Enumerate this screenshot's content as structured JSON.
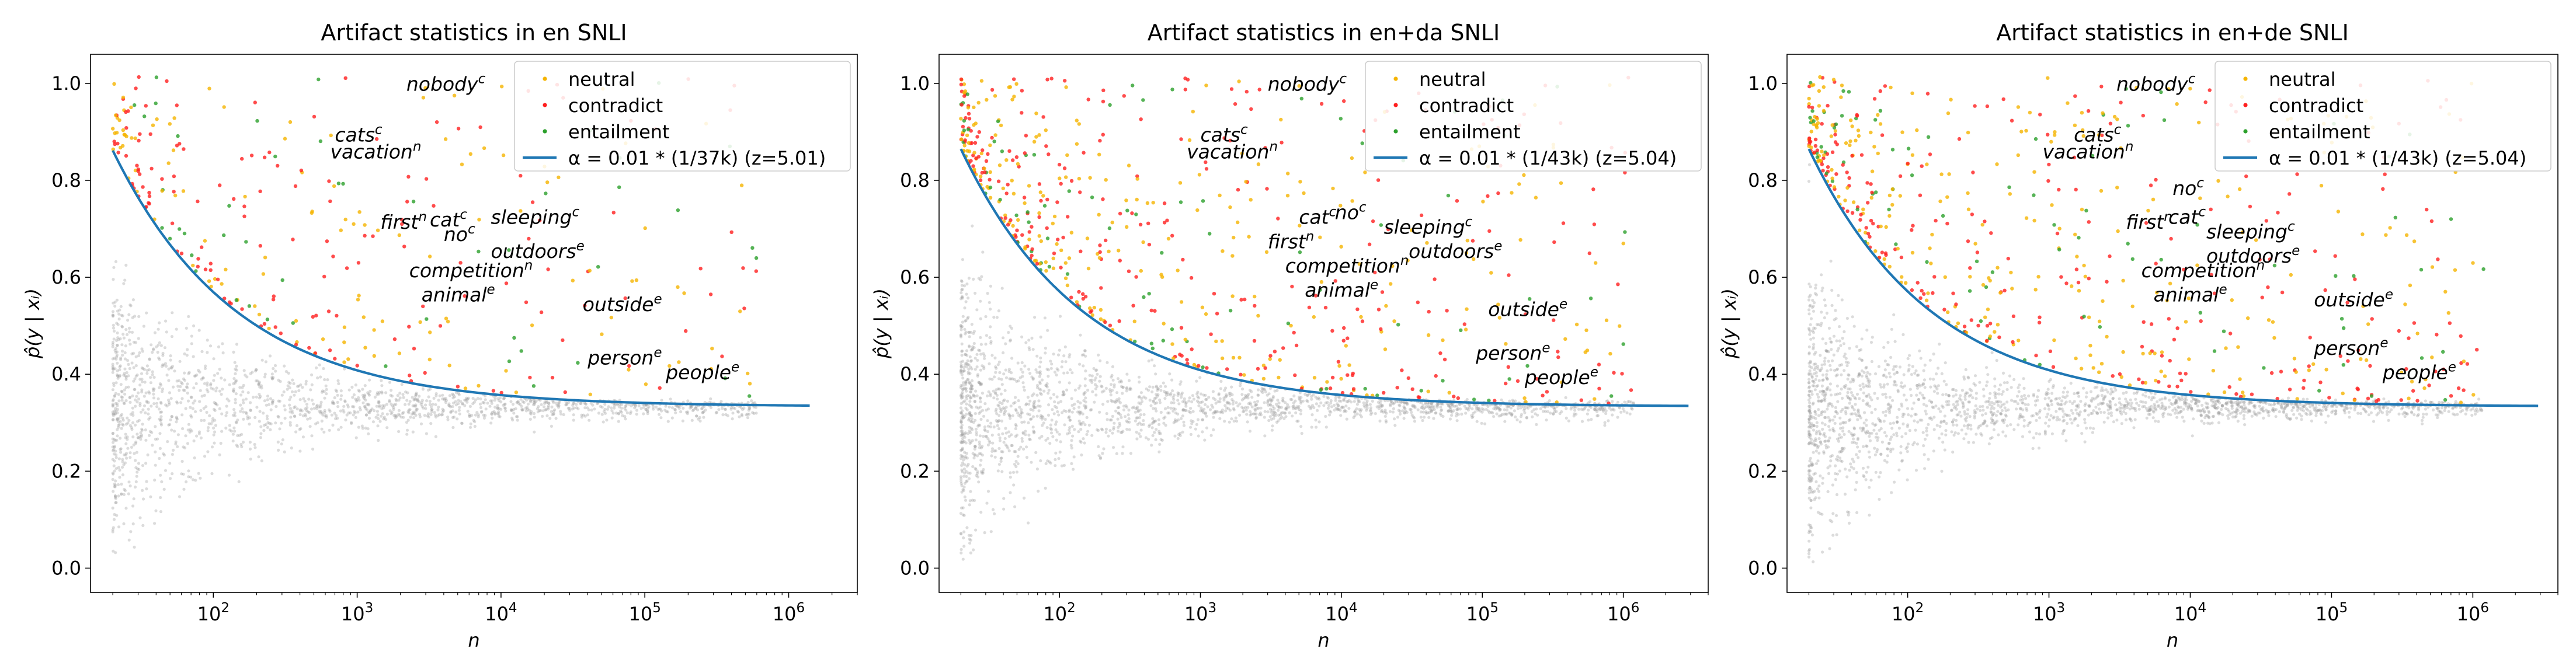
{
  "colors": {
    "neutral": "#f5b400",
    "contradict": "#ff1f1f",
    "entailment": "#2ca02c",
    "curve": "#1f77b4",
    "background_points": "#9a9a9a"
  },
  "chart_data": [
    {
      "type": "scatter",
      "title": "Artifact statistics in en SNLI",
      "xlabel": "n",
      "ylabel": "p̂(y | xᵢ)",
      "xscale": "log",
      "xlim": [
        14,
        3000000
      ],
      "ylim": [
        -0.05,
        1.06
      ],
      "xticks": [
        {
          "value": 100,
          "base": "10",
          "exp": "2"
        },
        {
          "value": 1000,
          "base": "10",
          "exp": "3"
        },
        {
          "value": 10000,
          "base": "10",
          "exp": "4"
        },
        {
          "value": 100000,
          "base": "10",
          "exp": "5"
        },
        {
          "value": 1000000,
          "base": "10",
          "exp": "6"
        }
      ],
      "yticks": [
        {
          "value": 0.0,
          "label": "0.0"
        },
        {
          "value": 0.2,
          "label": "0.2"
        },
        {
          "value": 0.4,
          "label": "0.4"
        },
        {
          "value": 0.6,
          "label": "0.6"
        },
        {
          "value": 0.8,
          "label": "0.8"
        },
        {
          "value": 1.0,
          "label": "1.0"
        }
      ],
      "legend": {
        "location": "top-right",
        "entries": [
          {
            "label": "neutral",
            "kind": "marker",
            "series": "neutral"
          },
          {
            "label": "contradict",
            "kind": "marker",
            "series": "contradict"
          },
          {
            "label": "entailment",
            "kind": "marker",
            "series": "entailment"
          },
          {
            "label": "α = 0.01 * (1/37k) (z=5.01)",
            "kind": "line",
            "series": "curve"
          }
        ]
      },
      "threshold_curve": {
        "name": "α = 0.01 * (1/37k)",
        "z": 5.01,
        "baseline": 0.3333,
        "x_range": [
          20,
          1400000
        ]
      },
      "background_cloud": {
        "center": 0.333,
        "x_range": [
          20,
          600000
        ],
        "count": 1700
      },
      "artifact_points": {
        "count": 330,
        "x_max": 600000
      },
      "annotations": [
        {
          "word": "nobody",
          "label": "c",
          "x": 2200,
          "y": 0.985
        },
        {
          "word": "cats",
          "label": "c",
          "x": 700,
          "y": 0.88
        },
        {
          "word": "vacation",
          "label": "n",
          "x": 650,
          "y": 0.845
        },
        {
          "word": "first",
          "label": "n",
          "x": 1450,
          "y": 0.7
        },
        {
          "word": "cat",
          "label": "c",
          "x": 3200,
          "y": 0.705
        },
        {
          "word": "no",
          "label": "c",
          "x": 4000,
          "y": 0.675
        },
        {
          "word": "sleeping",
          "label": "c",
          "x": 8500,
          "y": 0.71
        },
        {
          "word": "outdoors",
          "label": "e",
          "x": 8500,
          "y": 0.64
        },
        {
          "word": "competition",
          "label": "n",
          "x": 2300,
          "y": 0.6
        },
        {
          "word": "animal",
          "label": "e",
          "x": 2800,
          "y": 0.55
        },
        {
          "word": "outside",
          "label": "e",
          "x": 37000,
          "y": 0.53
        },
        {
          "word": "person",
          "label": "e",
          "x": 40000,
          "y": 0.42
        },
        {
          "word": "people",
          "label": "e",
          "x": 140000,
          "y": 0.39
        }
      ]
    },
    {
      "type": "scatter",
      "title": "Artifact statistics in en+da SNLI",
      "xlabel": "n",
      "ylabel": "p̂(y | xᵢ)",
      "xscale": "log",
      "xlim": [
        14,
        4000000
      ],
      "ylim": [
        -0.05,
        1.06
      ],
      "xticks": [
        {
          "value": 100,
          "base": "10",
          "exp": "2"
        },
        {
          "value": 1000,
          "base": "10",
          "exp": "3"
        },
        {
          "value": 10000,
          "base": "10",
          "exp": "4"
        },
        {
          "value": 100000,
          "base": "10",
          "exp": "5"
        },
        {
          "value": 1000000,
          "base": "10",
          "exp": "6"
        }
      ],
      "yticks": [
        {
          "value": 0.0,
          "label": "0.0"
        },
        {
          "value": 0.2,
          "label": "0.2"
        },
        {
          "value": 0.4,
          "label": "0.4"
        },
        {
          "value": 0.6,
          "label": "0.6"
        },
        {
          "value": 0.8,
          "label": "0.8"
        },
        {
          "value": 1.0,
          "label": "1.0"
        }
      ],
      "legend": {
        "location": "top-right",
        "entries": [
          {
            "label": "neutral",
            "kind": "marker",
            "series": "neutral"
          },
          {
            "label": "contradict",
            "kind": "marker",
            "series": "contradict"
          },
          {
            "label": "entailment",
            "kind": "marker",
            "series": "entailment"
          },
          {
            "label": "α = 0.01 * (1/43k) (z=5.04)",
            "kind": "line",
            "series": "curve"
          }
        ]
      },
      "threshold_curve": {
        "name": "α = 0.01 * (1/43k)",
        "z": 5.04,
        "baseline": 0.3333,
        "x_range": [
          20,
          2900000
        ]
      },
      "background_cloud": {
        "center": 0.333,
        "x_range": [
          20,
          1200000
        ],
        "count": 2000
      },
      "artifact_points": {
        "count": 620,
        "x_max": 1200000
      },
      "annotations": [
        {
          "word": "nobody",
          "label": "c",
          "x": 3000,
          "y": 0.985
        },
        {
          "word": "cats",
          "label": "c",
          "x": 1000,
          "y": 0.88
        },
        {
          "word": "vacation",
          "label": "n",
          "x": 800,
          "y": 0.845
        },
        {
          "word": "first",
          "label": "n",
          "x": 3000,
          "y": 0.66
        },
        {
          "word": "cat",
          "label": "c",
          "x": 5000,
          "y": 0.71
        },
        {
          "word": "no",
          "label": "c",
          "x": 9000,
          "y": 0.72
        },
        {
          "word": "sleeping",
          "label": "c",
          "x": 20000,
          "y": 0.69
        },
        {
          "word": "outdoors",
          "label": "e",
          "x": 30000,
          "y": 0.64
        },
        {
          "word": "competition",
          "label": "n",
          "x": 4000,
          "y": 0.61
        },
        {
          "word": "animal",
          "label": "e",
          "x": 5500,
          "y": 0.56
        },
        {
          "word": "outside",
          "label": "e",
          "x": 110000,
          "y": 0.52
        },
        {
          "word": "person",
          "label": "e",
          "x": 90000,
          "y": 0.43
        },
        {
          "word": "people",
          "label": "e",
          "x": 200000,
          "y": 0.38
        }
      ]
    },
    {
      "type": "scatter",
      "title": "Artifact statistics in en+de SNLI",
      "xlabel": "n",
      "ylabel": "p̂(y | xᵢ)",
      "xscale": "log",
      "xlim": [
        14,
        4000000
      ],
      "ylim": [
        -0.05,
        1.06
      ],
      "xticks": [
        {
          "value": 100,
          "base": "10",
          "exp": "2"
        },
        {
          "value": 1000,
          "base": "10",
          "exp": "3"
        },
        {
          "value": 10000,
          "base": "10",
          "exp": "4"
        },
        {
          "value": 100000,
          "base": "10",
          "exp": "5"
        },
        {
          "value": 1000000,
          "base": "10",
          "exp": "6"
        }
      ],
      "yticks": [
        {
          "value": 0.0,
          "label": "0.0"
        },
        {
          "value": 0.2,
          "label": "0.2"
        },
        {
          "value": 0.4,
          "label": "0.4"
        },
        {
          "value": 0.6,
          "label": "0.6"
        },
        {
          "value": 0.8,
          "label": "0.8"
        },
        {
          "value": 1.0,
          "label": "1.0"
        }
      ],
      "legend": {
        "location": "top-right",
        "entries": [
          {
            "label": "neutral",
            "kind": "marker",
            "series": "neutral"
          },
          {
            "label": "contradict",
            "kind": "marker",
            "series": "contradict"
          },
          {
            "label": "entailment",
            "kind": "marker",
            "series": "entailment"
          },
          {
            "label": "α = 0.01 * (1/43k) (z=5.04)",
            "kind": "line",
            "series": "curve"
          }
        ]
      },
      "threshold_curve": {
        "name": "α = 0.01 * (1/43k)",
        "z": 5.04,
        "baseline": 0.3333,
        "x_range": [
          20,
          2900000
        ]
      },
      "background_cloud": {
        "center": 0.333,
        "x_range": [
          20,
          1200000
        ],
        "count": 2000
      },
      "artifact_points": {
        "count": 620,
        "x_max": 1200000
      },
      "annotations": [
        {
          "word": "nobody",
          "label": "c",
          "x": 3000,
          "y": 0.985
        },
        {
          "word": "cats",
          "label": "c",
          "x": 1500,
          "y": 0.88
        },
        {
          "word": "vacation",
          "label": "n",
          "x": 900,
          "y": 0.845
        },
        {
          "word": "no",
          "label": "c",
          "x": 7500,
          "y": 0.77
        },
        {
          "word": "first",
          "label": "n",
          "x": 3500,
          "y": 0.7
        },
        {
          "word": "cat",
          "label": "c",
          "x": 7000,
          "y": 0.71
        },
        {
          "word": "sleeping",
          "label": "c",
          "x": 13000,
          "y": 0.68
        },
        {
          "word": "outdoors",
          "label": "e",
          "x": 13000,
          "y": 0.63
        },
        {
          "word": "competition",
          "label": "n",
          "x": 4500,
          "y": 0.6
        },
        {
          "word": "animal",
          "label": "e",
          "x": 5500,
          "y": 0.55
        },
        {
          "word": "outside",
          "label": "e",
          "x": 75000,
          "y": 0.54
        },
        {
          "word": "person",
          "label": "e",
          "x": 75000,
          "y": 0.44
        },
        {
          "word": "people",
          "label": "e",
          "x": 230000,
          "y": 0.39
        }
      ]
    }
  ]
}
